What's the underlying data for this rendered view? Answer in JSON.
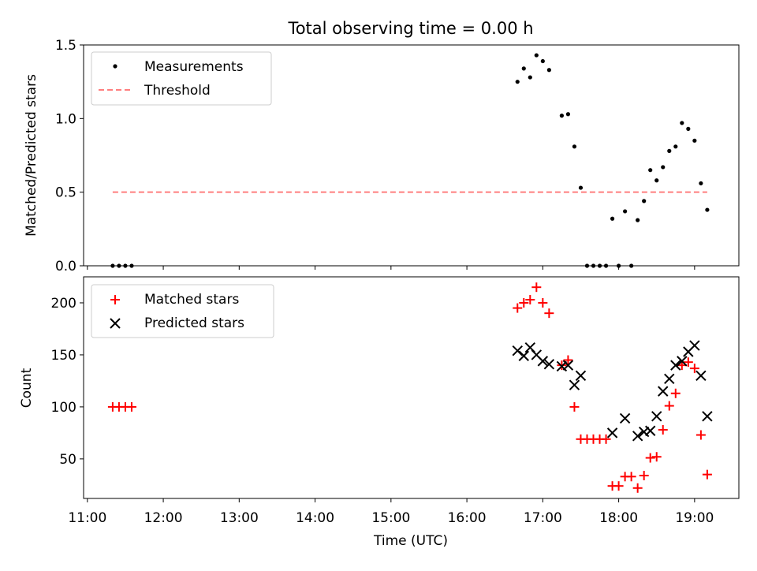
{
  "chart_data": [
    {
      "type": "scatter",
      "title": "Total observing time = 0.00 h",
      "xlabel": "",
      "ylabel": "Matched/Predicted stars",
      "xlim": [
        "10:57",
        "19:35"
      ],
      "ylim": [
        0,
        1.5
      ],
      "yticks": [
        "0.0",
        "0.5",
        "1.0",
        "1.5"
      ],
      "legend": "top-left",
      "series": [
        {
          "name": "Measurements",
          "marker": "dot",
          "color": "#000000",
          "x": [
            "11:20",
            "11:25",
            "11:30",
            "11:35",
            "16:40",
            "16:45",
            "16:50",
            "16:55",
            "17:00",
            "17:05",
            "17:15",
            "17:20",
            "17:25",
            "17:30",
            "17:35",
            "17:40",
            "17:45",
            "17:50",
            "17:55",
            "18:00",
            "18:05",
            "18:10",
            "18:15",
            "18:20",
            "18:25",
            "18:30",
            "18:35",
            "18:40",
            "18:45",
            "18:50",
            "18:55",
            "19:00",
            "19:05",
            "19:10"
          ],
          "y": [
            0,
            0,
            0,
            0,
            1.25,
            1.34,
            1.28,
            1.43,
            1.39,
            1.33,
            1.02,
            1.03,
            0.81,
            0.53,
            0,
            0,
            0,
            0,
            0.32,
            0,
            0.37,
            0,
            0.31,
            0.44,
            0.65,
            0.58,
            0.67,
            0.78,
            0.81,
            0.97,
            0.93,
            0.85,
            0.56,
            0.38
          ]
        },
        {
          "name": "Threshold",
          "marker": "dashed-line",
          "color": "#ff7f7f",
          "x": [
            "11:20",
            "19:10"
          ],
          "y": [
            0.5,
            0.5
          ]
        }
      ]
    },
    {
      "type": "scatter",
      "title": "",
      "xlabel": "Time (UTC)",
      "ylabel": "Count",
      "xlim": [
        "10:57",
        "19:35"
      ],
      "ylim": [
        12,
        225
      ],
      "xticks": [
        "11:00",
        "12:00",
        "13:00",
        "14:00",
        "15:00",
        "16:00",
        "17:00",
        "18:00",
        "19:00"
      ],
      "yticks": [
        "50",
        "100",
        "150",
        "200"
      ],
      "legend": "top-left",
      "series": [
        {
          "name": "Matched stars",
          "marker": "plus",
          "color": "#ff0000",
          "x": [
            "11:20",
            "11:25",
            "11:30",
            "11:35",
            "16:40",
            "16:45",
            "16:50",
            "16:55",
            "17:00",
            "17:05",
            "17:15",
            "17:20",
            "17:25",
            "17:30",
            "17:35",
            "17:40",
            "17:45",
            "17:50",
            "17:55",
            "18:00",
            "18:05",
            "18:10",
            "18:15",
            "18:20",
            "18:25",
            "18:30",
            "18:35",
            "18:40",
            "18:45",
            "18:50",
            "18:55",
            "19:00",
            "19:05",
            "19:10"
          ],
          "y": [
            100,
            100,
            100,
            100,
            195,
            200,
            203,
            215,
            200,
            190,
            140,
            145,
            100,
            69,
            69,
            69,
            69,
            69,
            24,
            24,
            33,
            33,
            22,
            34,
            51,
            52,
            78,
            101,
            113,
            140,
            143,
            137,
            73,
            35
          ]
        },
        {
          "name": "Predicted stars",
          "marker": "x",
          "color": "#000000",
          "x": [
            "16:40",
            "16:45",
            "16:50",
            "16:55",
            "17:00",
            "17:05",
            "17:15",
            "17:20",
            "17:25",
            "17:30",
            "17:55",
            "18:05",
            "18:15",
            "18:20",
            "18:25",
            "18:30",
            "18:35",
            "18:40",
            "18:45",
            "18:50",
            "18:55",
            "19:00",
            "19:05",
            "19:10"
          ],
          "y": [
            154,
            149,
            157,
            150,
            144,
            141,
            139,
            140,
            121,
            130,
            75,
            89,
            72,
            76,
            77,
            91,
            115,
            127,
            140,
            144,
            153,
            159,
            130,
            91
          ]
        }
      ]
    }
  ]
}
